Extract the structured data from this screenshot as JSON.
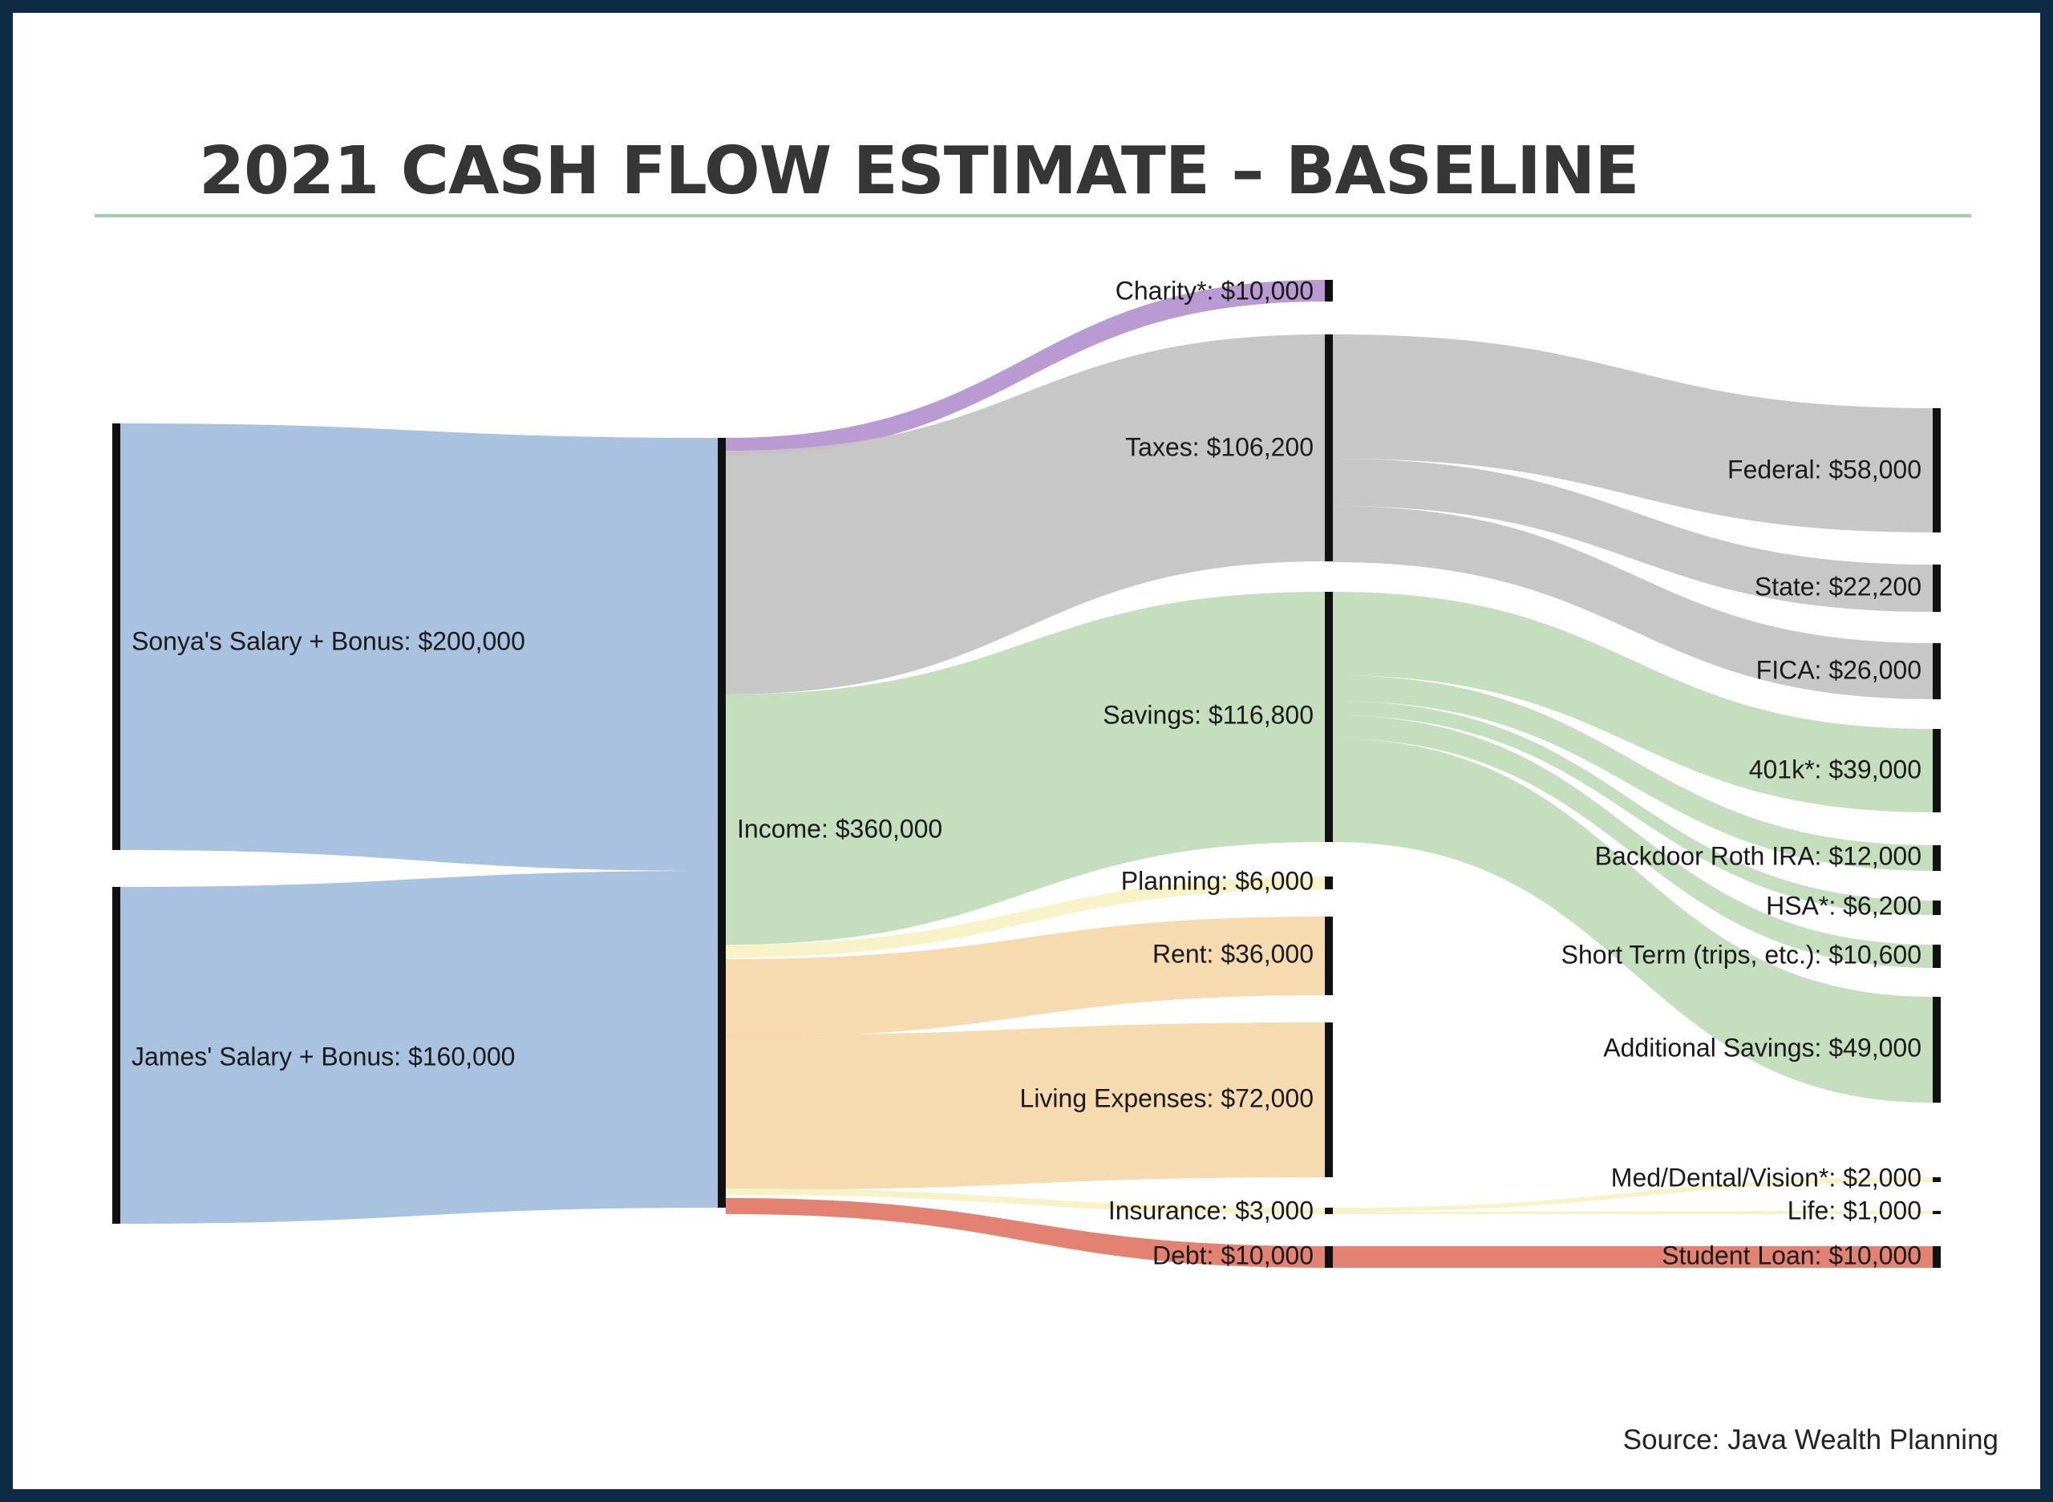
{
  "page": {
    "title": "2021 CASH FLOW ESTIMATE – BASELINE",
    "source": "Source: Java Wealth Planning"
  },
  "chart_data": {
    "type": "sankey",
    "title": "2021 CASH FLOW ESTIMATE – BASELINE",
    "units": "USD",
    "colors": {
      "income": "#a3bfde",
      "charity": "#b596cf",
      "taxes": "#c4c4c4",
      "savings": "#c1dcba",
      "planning": "#f7f1c4",
      "expenses": "#f5d8ac",
      "insurance": "#f7f1c4",
      "debt": "#df7b6b",
      "node_bar": "#111111"
    },
    "nodes": [
      {
        "id": "sonya",
        "label": "Sonya's Salary + Bonus: $200,000",
        "value": 200000,
        "column": 0
      },
      {
        "id": "james",
        "label": "James' Salary + Bonus: $160,000",
        "value": 160000,
        "column": 0
      },
      {
        "id": "income",
        "label": "Income: $360,000",
        "value": 360000,
        "column": 1
      },
      {
        "id": "charity",
        "label": "Charity*: $10,000",
        "value": 10000,
        "column": 2
      },
      {
        "id": "taxes",
        "label": "Taxes: $106,200",
        "value": 106200,
        "column": 2
      },
      {
        "id": "savings",
        "label": "Savings: $116,800",
        "value": 116800,
        "column": 2
      },
      {
        "id": "planning",
        "label": "Planning: $6,000",
        "value": 6000,
        "column": 2
      },
      {
        "id": "rent",
        "label": "Rent: $36,000",
        "value": 36000,
        "column": 2
      },
      {
        "id": "living",
        "label": "Living Expenses: $72,000",
        "value": 72000,
        "column": 2
      },
      {
        "id": "insurance",
        "label": "Insurance: $3,000",
        "value": 3000,
        "column": 2
      },
      {
        "id": "debt",
        "label": "Debt: $10,000",
        "value": 10000,
        "column": 2
      },
      {
        "id": "federal",
        "label": "Federal: $58,000",
        "value": 58000,
        "column": 3
      },
      {
        "id": "state",
        "label": "State: $22,200",
        "value": 22200,
        "column": 3
      },
      {
        "id": "fica",
        "label": "FICA: $26,000",
        "value": 26000,
        "column": 3
      },
      {
        "id": "k401",
        "label": "401k*: $39,000",
        "value": 39000,
        "column": 3
      },
      {
        "id": "roth",
        "label": "Backdoor Roth IRA: $12,000",
        "value": 12000,
        "column": 3
      },
      {
        "id": "hsa",
        "label": "HSA*: $6,200",
        "value": 6200,
        "column": 3
      },
      {
        "id": "shortterm",
        "label": "Short Term (trips, etc.): $10,600",
        "value": 10600,
        "column": 3
      },
      {
        "id": "addsav",
        "label": "Additional Savings: $49,000",
        "value": 49000,
        "column": 3
      },
      {
        "id": "med",
        "label": "Med/Dental/Vision*: $2,000",
        "value": 2000,
        "column": 3
      },
      {
        "id": "life",
        "label": "Life: $1,000",
        "value": 1000,
        "column": 3
      },
      {
        "id": "student",
        "label": "Student Loan: $10,000",
        "value": 10000,
        "column": 3
      }
    ],
    "links": [
      {
        "source": "sonya",
        "target": "income",
        "value": 200000,
        "color": "income"
      },
      {
        "source": "james",
        "target": "income",
        "value": 160000,
        "color": "income"
      },
      {
        "source": "income",
        "target": "charity",
        "value": 10000,
        "color": "charity"
      },
      {
        "source": "income",
        "target": "taxes",
        "value": 106200,
        "color": "taxes"
      },
      {
        "source": "income",
        "target": "savings",
        "value": 116800,
        "color": "savings"
      },
      {
        "source": "income",
        "target": "planning",
        "value": 6000,
        "color": "planning"
      },
      {
        "source": "income",
        "target": "rent",
        "value": 36000,
        "color": "expenses"
      },
      {
        "source": "income",
        "target": "living",
        "value": 72000,
        "color": "expenses"
      },
      {
        "source": "income",
        "target": "insurance",
        "value": 3000,
        "color": "insurance"
      },
      {
        "source": "income",
        "target": "debt",
        "value": 10000,
        "color": "debt"
      },
      {
        "source": "taxes",
        "target": "federal",
        "value": 58000,
        "color": "taxes"
      },
      {
        "source": "taxes",
        "target": "state",
        "value": 22200,
        "color": "taxes"
      },
      {
        "source": "taxes",
        "target": "fica",
        "value": 26000,
        "color": "taxes"
      },
      {
        "source": "savings",
        "target": "k401",
        "value": 39000,
        "color": "savings"
      },
      {
        "source": "savings",
        "target": "roth",
        "value": 12000,
        "color": "savings"
      },
      {
        "source": "savings",
        "target": "hsa",
        "value": 6200,
        "color": "savings"
      },
      {
        "source": "savings",
        "target": "shortterm",
        "value": 10600,
        "color": "savings"
      },
      {
        "source": "savings",
        "target": "addsav",
        "value": 49000,
        "color": "savings"
      },
      {
        "source": "insurance",
        "target": "med",
        "value": 2000,
        "color": "insurance"
      },
      {
        "source": "insurance",
        "target": "life",
        "value": 1000,
        "color": "insurance"
      },
      {
        "source": "debt",
        "target": "student",
        "value": 10000,
        "color": "debt"
      }
    ]
  }
}
